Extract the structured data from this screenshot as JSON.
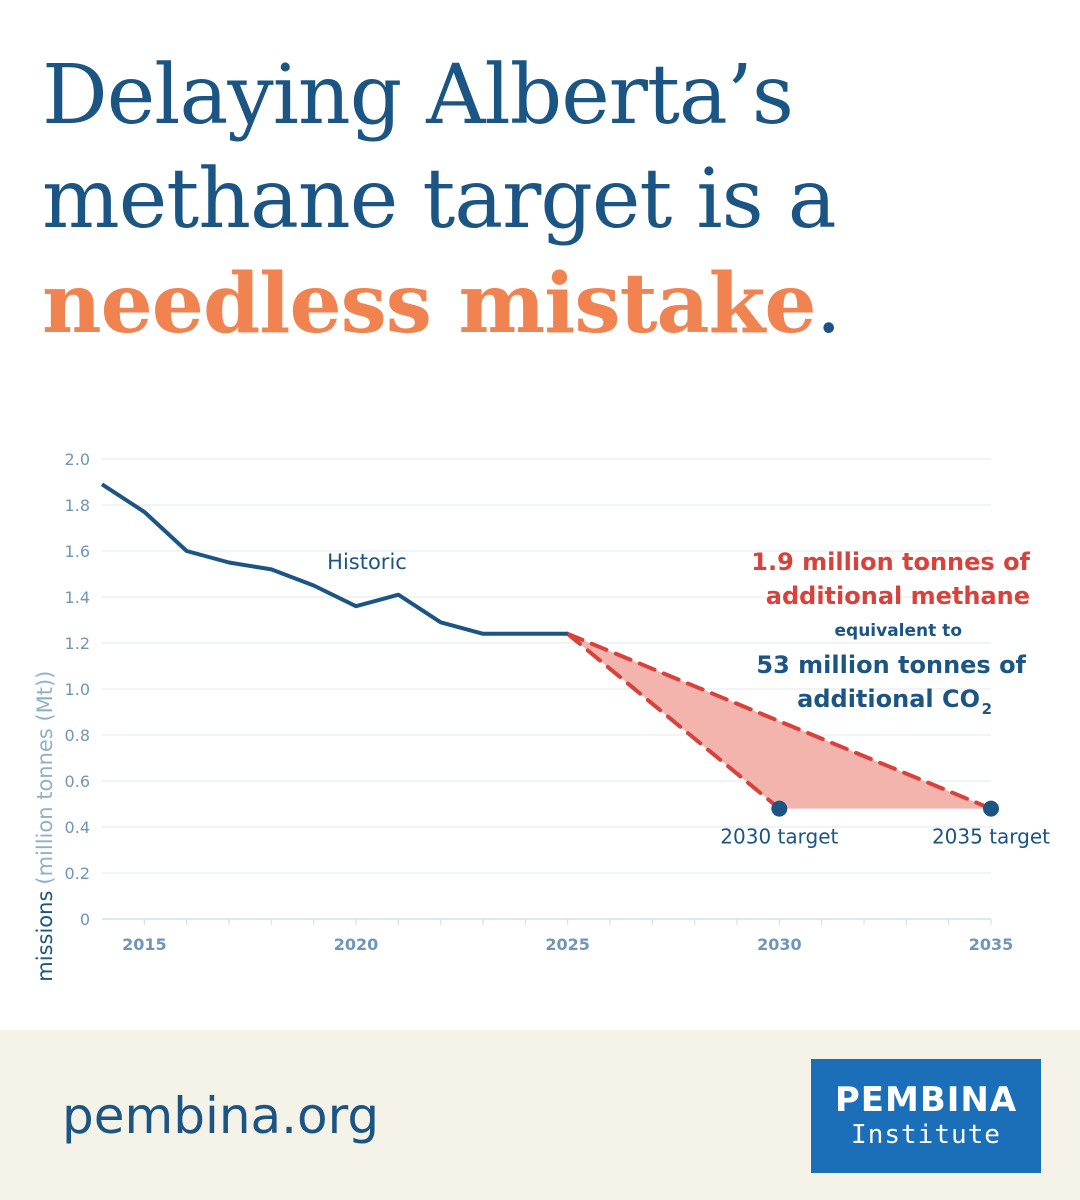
{
  "headline": {
    "line1": "Delaying Alberta’s",
    "line2": "methane target is a",
    "highlight": "needless mistake",
    "period": "."
  },
  "colors": {
    "navy": "#1b5584",
    "orange": "#f0834f",
    "red": "#d9413b",
    "fill": "#f4b4ae",
    "tick": "#6f96b8"
  },
  "chart_data": {
    "type": "line",
    "ylabel_main": "Methane emissions",
    "ylabel_unit": "(million tonnes (Mt))",
    "xlim": [
      2014,
      2035
    ],
    "ylim": [
      0,
      2.0
    ],
    "x_ticks": [
      2015,
      2020,
      2025,
      2030,
      2035
    ],
    "y_ticks": [
      "0",
      "0.2",
      "0.4",
      "0.6",
      "0.8",
      "1.0",
      "1.2",
      "1.4",
      "1.6",
      "1.8",
      "2.0"
    ],
    "y_tick_values": [
      0,
      0.2,
      0.4,
      0.6,
      0.8,
      1.0,
      1.2,
      1.4,
      1.6,
      1.8,
      2.0
    ],
    "grid": true,
    "series": [
      {
        "name": "Historic",
        "x": [
          2014,
          2015,
          2016,
          2017,
          2018,
          2019,
          2020,
          2021,
          2022,
          2023,
          2024,
          2025
        ],
        "y": [
          1.89,
          1.77,
          1.6,
          1.55,
          1.52,
          1.45,
          1.36,
          1.41,
          1.29,
          1.24,
          1.24,
          1.24
        ]
      }
    ],
    "projections": [
      {
        "x": [
          2025,
          2030
        ],
        "y": [
          1.24,
          0.48
        ]
      },
      {
        "x": [
          2025,
          2035
        ],
        "y": [
          1.24,
          0.48
        ]
      }
    ],
    "targets": [
      {
        "label": "2030 target",
        "x": 2030,
        "y": 0.48
      },
      {
        "label": "2035 target",
        "x": 2035,
        "y": 0.48
      }
    ],
    "annotation": {
      "red_line1": "1.9 million tonnes of",
      "red_line2": "additional methane",
      "equiv": "equivalent to",
      "navy_line1": "53 million tonnes of",
      "navy_line2": "additional CO",
      "navy_sub": "2"
    }
  },
  "footer": {
    "url": "pembina.org",
    "logo_line1": "PEMBINA",
    "logo_line2": "Institute"
  }
}
